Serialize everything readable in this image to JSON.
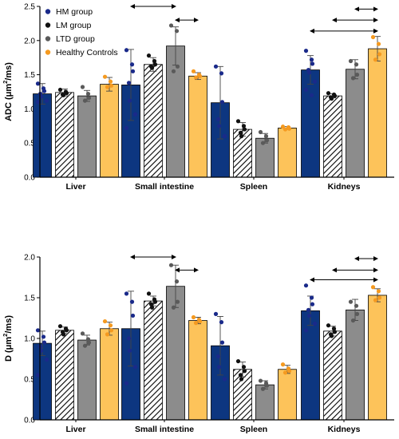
{
  "chart_data": [
    {
      "type": "bar",
      "ylabel": "ADC (μm²/ms)",
      "ylabel_main": "ADC (μm",
      "ylabel_sup": "2",
      "ylabel_tail": "/ms)",
      "ylim": [
        0,
        2.5
      ],
      "yticks": [
        "0.0",
        "0.5",
        "1.0",
        "1.5",
        "2.0",
        "2.5"
      ],
      "categories": [
        "Liver",
        "Small intestine",
        "Spleen",
        "Kidneys"
      ],
      "legend_position": "top-left",
      "series": [
        {
          "name": "HM group",
          "values": [
            1.22,
            1.35,
            1.09,
            1.57
          ],
          "sd": [
            0.15,
            0.52,
            0.53,
            0.21
          ],
          "points": [
            [
              1.37,
              1.3,
              1.26,
              1.22,
              1.18,
              1.12,
              1.1
            ],
            [
              1.86,
              1.65,
              1.55,
              1.38,
              1.12,
              0.92,
              0.72
            ],
            [
              1.62,
              1.52,
              1.1,
              0.85,
              0.75,
              0.6
            ],
            [
              1.85,
              1.72,
              1.66,
              1.57,
              1.53,
              1.4,
              1.28,
              1.2
            ]
          ]
        },
        {
          "name": "LM group",
          "values": [
            1.24,
            1.65,
            0.7,
            1.19
          ],
          "sd": [
            0.05,
            0.1,
            0.1,
            0.03
          ],
          "points": [
            [
              1.28,
              1.25,
              1.23,
              1.21,
              1.2
            ],
            [
              1.78,
              1.7,
              1.65,
              1.62,
              1.6
            ],
            [
              0.82,
              0.75,
              0.7,
              0.65,
              0.6
            ],
            [
              1.23,
              1.21,
              1.19,
              1.17,
              1.15
            ]
          ]
        },
        {
          "name": "LTD group",
          "values": [
            1.19,
            1.92,
            0.57,
            1.58
          ],
          "sd": [
            0.08,
            0.28,
            0.07,
            0.14
          ],
          "points": [
            [
              1.32,
              1.22,
              1.16,
              1.12
            ],
            [
              2.22,
              2.14,
              1.62,
              1.55
            ],
            [
              0.66,
              0.6,
              0.54,
              0.5
            ],
            [
              1.7,
              1.65,
              1.5,
              1.45
            ]
          ]
        },
        {
          "name": "Healthy Controls",
          "values": [
            1.36,
            1.48,
            0.72,
            1.88
          ],
          "sd": [
            0.1,
            0.05,
            0.02,
            0.18
          ],
          "points": [
            [
              1.47,
              1.4,
              1.34,
              1.32
            ],
            [
              1.55,
              1.5,
              1.48,
              1.46
            ],
            [
              0.74,
              0.73,
              0.71,
              0.7
            ],
            [
              2.05,
              1.95,
              1.8,
              1.72
            ]
          ]
        }
      ],
      "comparisons": [
        [
          1,
          0,
          2,
          2.5
        ],
        [
          1,
          2,
          3,
          2.3
        ],
        [
          3,
          1,
          3,
          2.3
        ],
        [
          3,
          2,
          3,
          2.46
        ],
        [
          3,
          0,
          3,
          2.14
        ]
      ]
    },
    {
      "type": "bar",
      "ylabel": "D (μm²/ms)",
      "ylabel_main": "D (μm",
      "ylabel_sup": "2",
      "ylabel_tail": "/ms)",
      "ylim": [
        0,
        2.0
      ],
      "yticks": [
        "0.0",
        "0.5",
        "1.0",
        "1.5",
        "2.0"
      ],
      "categories": [
        "Liver",
        "Small intestine",
        "Spleen",
        "Kidneys"
      ],
      "series": [
        {
          "name": "HM group",
          "values": [
            0.94,
            1.12,
            0.91,
            1.34
          ],
          "sd": [
            0.15,
            0.46,
            0.36,
            0.18
          ],
          "points": [
            [
              1.1,
              1.02,
              0.95,
              0.9,
              0.85,
              0.74,
              0.55
            ],
            [
              1.55,
              1.45,
              1.28,
              1.0,
              0.85,
              0.65,
              0.45
            ],
            [
              1.3,
              1.2,
              0.95,
              0.78,
              0.65,
              0.5
            ],
            [
              1.65,
              1.5,
              1.42,
              1.35,
              1.28,
              1.18,
              1.1
            ]
          ]
        },
        {
          "name": "LM group",
          "values": [
            1.1,
            1.46,
            0.62,
            1.09
          ],
          "sd": [
            0.04,
            0.06,
            0.09,
            0.06
          ],
          "points": [
            [
              1.15,
              1.12,
              1.1,
              1.08,
              1.05
            ],
            [
              1.55,
              1.48,
              1.45,
              1.42,
              1.38
            ],
            [
              0.72,
              0.65,
              0.6,
              0.55,
              0.5
            ],
            [
              1.16,
              1.12,
              1.08,
              1.05,
              1.03
            ]
          ]
        },
        {
          "name": "LTD group",
          "values": [
            0.98,
            1.64,
            0.43,
            1.35
          ],
          "sd": [
            0.06,
            0.26,
            0.05,
            0.13
          ],
          "points": [
            [
              1.06,
              0.99,
              0.95,
              0.91
            ],
            [
              1.9,
              1.7,
              1.45,
              1.38
            ],
            [
              0.48,
              0.45,
              0.42,
              0.38
            ],
            [
              1.45,
              1.4,
              1.3,
              1.22
            ]
          ]
        },
        {
          "name": "Healthy Controls",
          "values": [
            1.12,
            1.22,
            0.62,
            1.53
          ],
          "sd": [
            0.08,
            0.04,
            0.05,
            0.08
          ],
          "points": [
            [
              1.21,
              1.16,
              1.1,
              1.05
            ],
            [
              1.26,
              1.23,
              1.21,
              1.19
            ],
            [
              0.68,
              0.63,
              0.6,
              0.58
            ],
            [
              1.63,
              1.58,
              1.5,
              1.47
            ]
          ]
        }
      ],
      "comparisons": [
        [
          1,
          0,
          2,
          2.0
        ],
        [
          1,
          2,
          3,
          1.84
        ],
        [
          3,
          1,
          3,
          1.84
        ],
        [
          3,
          2,
          3,
          1.98
        ],
        [
          3,
          0,
          3,
          1.72
        ]
      ]
    }
  ],
  "colors": {
    "hm": "#0d3680",
    "hm_point": "#1a2a8a",
    "lm": "#ffffff",
    "lm_point": "#111111",
    "ltd": "#8c8c8c",
    "ltd_point": "#5a5a5a",
    "hc": "#fdc35a",
    "hc_point": "#f59a20"
  }
}
